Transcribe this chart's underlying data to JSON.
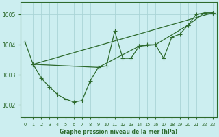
{
  "title": "Graphe pression niveau de la mer (hPa)",
  "bg_color": "#cceef0",
  "line_color": "#2d6a2d",
  "grid_color": "#aad4d6",
  "ylim": [
    1001.6,
    1005.4
  ],
  "xlim": [
    -0.5,
    23.5
  ],
  "yticks": [
    1002,
    1003,
    1004,
    1005
  ],
  "xticks": [
    0,
    1,
    2,
    3,
    4,
    5,
    6,
    7,
    8,
    9,
    10,
    11,
    12,
    13,
    14,
    15,
    16,
    17,
    18,
    19,
    20,
    21,
    22,
    23
  ],
  "series": [
    {
      "x": [
        0,
        1,
        2,
        3,
        4,
        5,
        6,
        7,
        8,
        9,
        10,
        11,
        12,
        13,
        14,
        15,
        16,
        17,
        18,
        19,
        20,
        21,
        22,
        23
      ],
      "y": [
        1004.1,
        1003.35,
        1002.9,
        1002.6,
        1002.35,
        1002.2,
        1002.1,
        1002.15,
        1002.8,
        1003.25,
        1003.3,
        1004.45,
        1003.55,
        1003.55,
        1003.95,
        1004.0,
        1004.0,
        1003.55,
        1004.25,
        1004.35,
        1004.65,
        1005.0,
        1005.05,
        1005.05
      ]
    },
    {
      "x": [
        1,
        23
      ],
      "y": [
        1003.35,
        1005.05
      ]
    },
    {
      "x": [
        1,
        9,
        14,
        16,
        20,
        22,
        23
      ],
      "y": [
        1003.35,
        1003.25,
        1003.95,
        1004.0,
        1004.65,
        1005.05,
        1005.05
      ]
    }
  ],
  "marker": "+",
  "markersize": 4.0,
  "linewidth": 0.9
}
